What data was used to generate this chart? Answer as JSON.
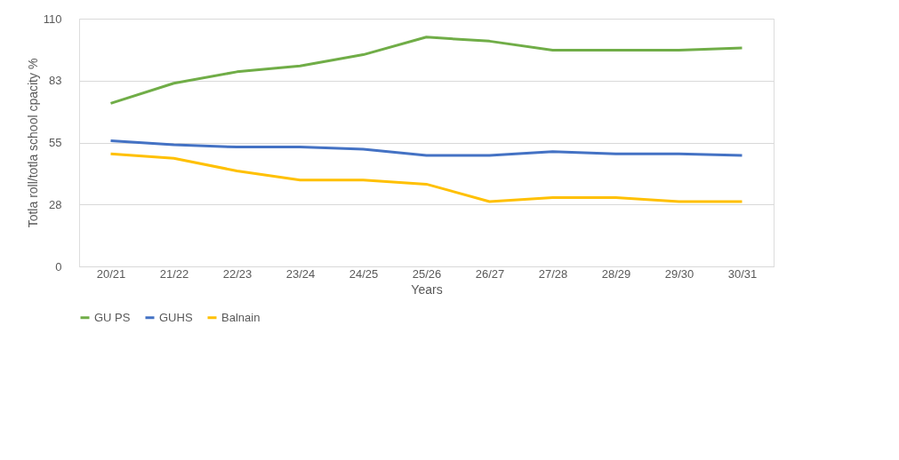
{
  "chart_data": {
    "type": "line",
    "xlabel": "Years",
    "ylabel": "Totla roll/totla school cpacity %",
    "categories": [
      "20/21",
      "21/22",
      "22/23",
      "23/24",
      "24/25",
      "25/26",
      "26/27",
      "27/28",
      "28/29",
      "29/30",
      "30/31"
    ],
    "series": [
      {
        "name": "GU PS",
        "color": "#70ad47",
        "values": [
          72.4,
          81.3,
          86.4,
          89,
          94,
          101.8,
          100,
          96,
          96,
          96,
          97
        ]
      },
      {
        "name": "GUHS",
        "color": "#4472c4",
        "values": [
          55.8,
          54,
          53,
          53,
          52,
          49.3,
          49.3,
          51,
          50,
          50,
          49.3
        ]
      },
      {
        "name": "Balnain",
        "color": "#ffc000",
        "values": [
          50,
          48,
          42.4,
          38.3,
          38.3,
          36.5,
          28.8,
          30.6,
          30.6,
          28.8,
          28.8
        ]
      }
    ],
    "ylim": [
      0,
      110
    ],
    "yticks": [
      0,
      {
        "value": 27.5,
        "label": "28"
      },
      55,
      {
        "value": 82.5,
        "label": "83"
      },
      110
    ],
    "grid": "y",
    "legend": "bottom",
    "marker": "none",
    "line_style": "solid"
  }
}
